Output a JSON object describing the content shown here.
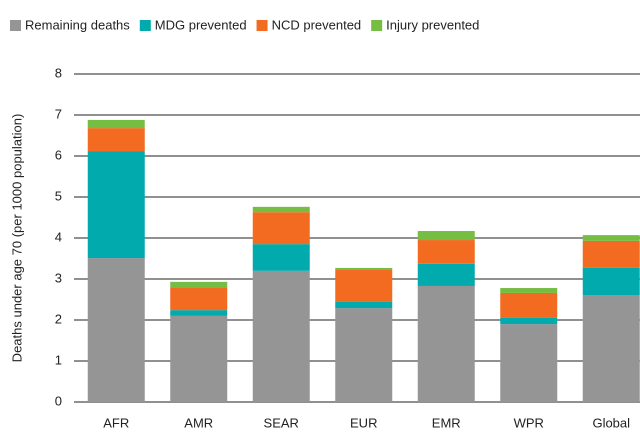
{
  "chart_data": {
    "type": "stacked_bar",
    "categories": [
      "AFR",
      "AMR",
      "SEAR",
      "EUR",
      "EMR",
      "WPR",
      "Global"
    ],
    "series": [
      {
        "name": "Remaining deaths",
        "color": "#959595",
        "values": [
          3.51,
          2.1,
          3.2,
          2.29,
          2.83,
          1.9,
          2.61
        ]
      },
      {
        "name": "MDG prevented",
        "color": "#00aaad",
        "values": [
          2.61,
          0.14,
          0.65,
          0.15,
          0.54,
          0.15,
          0.66
        ]
      },
      {
        "name": "NCD prevented",
        "color": "#f26b21",
        "values": [
          0.56,
          0.54,
          0.78,
          0.78,
          0.58,
          0.61,
          0.66
        ]
      },
      {
        "name": "Injury prevented",
        "color": "#76bd43",
        "values": [
          0.2,
          0.15,
          0.13,
          0.05,
          0.22,
          0.12,
          0.14
        ]
      }
    ],
    "y_label": "Deaths under age 70 (per 1000 population)",
    "ylim": [
      0,
      8
    ],
    "yticks": [
      0,
      1,
      2,
      3,
      4,
      5,
      6,
      7,
      8
    ],
    "grid": true,
    "legend": "top"
  }
}
